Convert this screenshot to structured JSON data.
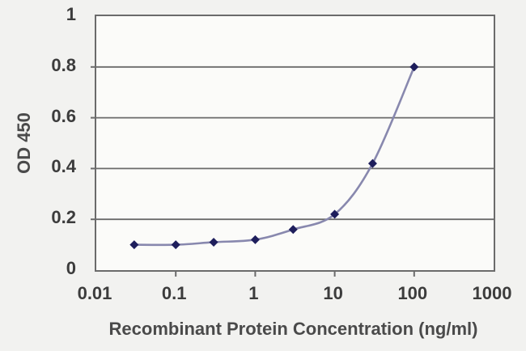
{
  "chart_data": {
    "type": "line",
    "title": "",
    "xlabel": "Recombinant Protein Concentration (ng/ml)",
    "ylabel": "OD 450",
    "x_scale": "log",
    "y_scale": "linear",
    "xlim": [
      0.01,
      1000
    ],
    "ylim": [
      0,
      1
    ],
    "x_tick_values": [
      0.01,
      0.1,
      1,
      10,
      100,
      1000
    ],
    "x_tick_labels": [
      "0.01",
      "0.1",
      "1",
      "10",
      "100",
      "1000"
    ],
    "y_tick_values": [
      0,
      0.2,
      0.4,
      0.6,
      0.8,
      1
    ],
    "y_tick_labels": [
      "0",
      "0.2",
      "0.4",
      "0.6",
      "0.8",
      "1"
    ],
    "grid": "horizontal",
    "legend": "none",
    "marker": "diamond",
    "line_style": "smooth",
    "series": [
      {
        "name": "OD 450",
        "x": [
          0.03,
          0.1,
          0.3,
          1,
          3,
          10,
          30,
          100
        ],
        "y": [
          0.1,
          0.1,
          0.11,
          0.12,
          0.16,
          0.22,
          0.42,
          0.8
        ]
      }
    ],
    "colors": {
      "line": "#8888ae",
      "marker": "#1e1e5c",
      "grid": "#6b6b6b",
      "axis": "#6b6b6b",
      "tick_text": "#3c3c3c",
      "title_text": "#4a4a4a",
      "background": "#f2f2f0",
      "plot_background": "#fbfbf9"
    }
  }
}
